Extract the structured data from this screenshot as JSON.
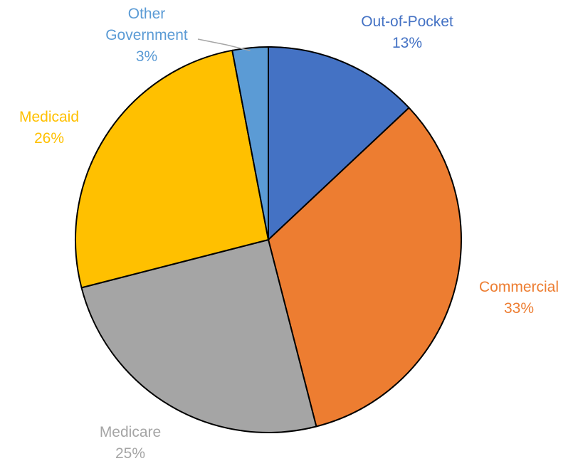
{
  "chart_data": {
    "type": "pie",
    "start": "12 o'clock",
    "direction": "clockwise",
    "title": "",
    "slices": [
      {
        "label": "Out-of-Pocket",
        "value": 13,
        "value_label": "13%",
        "color": "#4472c4",
        "label_color": "#4472c4"
      },
      {
        "label": "Commercial",
        "value": 33,
        "value_label": "33%",
        "color": "#ed7d31",
        "label_color": "#ed7d31"
      },
      {
        "label": "Medicare",
        "value": 25,
        "value_label": "25%",
        "color": "#a5a5a5",
        "label_color": "#a5a5a5"
      },
      {
        "label": "Medicaid",
        "value": 26,
        "value_label": "26%",
        "color": "#ffc000",
        "label_color": "#ffc000"
      },
      {
        "label": "Other Government",
        "value": 3,
        "value_label": "3%",
        "color": "#5b9bd5",
        "label_color": "#5b9bd5"
      }
    ],
    "legend": "none"
  }
}
